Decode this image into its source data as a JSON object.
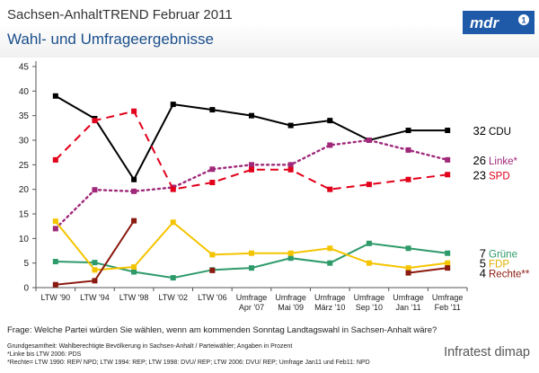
{
  "header": {
    "title": "Sachsen-AnhaltTREND Februar 2011",
    "subtitle": "Wahl- und Umfrageergebnisse",
    "logo_text": "mdr"
  },
  "question": "Frage: Welche Partei würden Sie wählen, wenn am kommenden Sonntag Landtagswahl in Sachsen-Anhalt wäre?",
  "footnotes": [
    "Grundgesamtheit: Wahlberechtigte Bevölkerung in Sachsen-Anhalt / Parteiwähler; Angaben in Prozent",
    "*Linke bis LTW 2006: PDS",
    "*Rechte= LTW 1990: REP/ NPD; LTW 1994: REP; LTW 1998: DVU/ REP; LTW 2006: DVU/ REP; Umfrage Jan11 und Feb11: NPD"
  ],
  "brand": "Infratest dimap",
  "chart_data": {
    "type": "line",
    "title": "",
    "xlabel": "",
    "ylabel": "",
    "ylim": [
      0,
      45
    ],
    "yticks": [
      0,
      5,
      10,
      15,
      20,
      25,
      30,
      35,
      40,
      45
    ],
    "grid": false,
    "categories": [
      [
        "LTW '90"
      ],
      [
        "LTW '94"
      ],
      [
        "LTW '98"
      ],
      [
        "LTW '02"
      ],
      [
        "LTW '06"
      ],
      [
        "Umfrage",
        "Apr '07"
      ],
      [
        "Umfrage",
        "Mai '09"
      ],
      [
        "Umfrage",
        "März '10"
      ],
      [
        "Umfrage",
        "Sep '10"
      ],
      [
        "Umfrage",
        "Jan '11"
      ],
      [
        "Umfrage",
        "Feb '11"
      ]
    ],
    "series": [
      {
        "name": "CDU",
        "color": "#000000",
        "dash": "solid",
        "marker": "square",
        "values": [
          39,
          34.4,
          22,
          37.3,
          36.2,
          35,
          33,
          34,
          30,
          32,
          32
        ],
        "end_label": "32",
        "label_color": "#000000"
      },
      {
        "name": "Linke*",
        "color": "#a0287a",
        "dash": "dot",
        "marker": "square",
        "values": [
          12,
          19.9,
          19.6,
          20.4,
          24.1,
          25,
          25,
          29,
          30,
          28,
          26
        ],
        "end_label": "26",
        "label_color": "#a0287a"
      },
      {
        "name": "SPD",
        "color": "#e2001a",
        "dash": "dash",
        "marker": "square",
        "values": [
          26,
          34,
          35.9,
          20,
          21.4,
          24,
          24,
          20,
          21,
          22,
          23
        ],
        "end_label": "23",
        "label_color": "#e2001a"
      },
      {
        "name": "Grüne",
        "color": "#2e9a6a",
        "dash": "solid",
        "marker": "square",
        "values": [
          5.3,
          5.1,
          3.2,
          2,
          3.6,
          4,
          6,
          5,
          9,
          8,
          7
        ],
        "end_label": "7",
        "label_color": "#2e9a6a"
      },
      {
        "name": "FDP",
        "color": "#f5c400",
        "dash": "solid",
        "marker": "square",
        "values": [
          13.5,
          3.6,
          4.2,
          13.3,
          6.7,
          7,
          7,
          8,
          5,
          4,
          5
        ],
        "end_label": "5",
        "label_color": "#e0b000"
      },
      {
        "name": "Rechte**",
        "color": "#8b1a10",
        "dash": "solid",
        "marker": "square",
        "values": [
          0.6,
          1.4,
          13.6,
          null,
          3.5,
          null,
          null,
          null,
          null,
          3,
          4
        ],
        "end_label": "4",
        "label_color": "#8b1a10"
      }
    ]
  }
}
